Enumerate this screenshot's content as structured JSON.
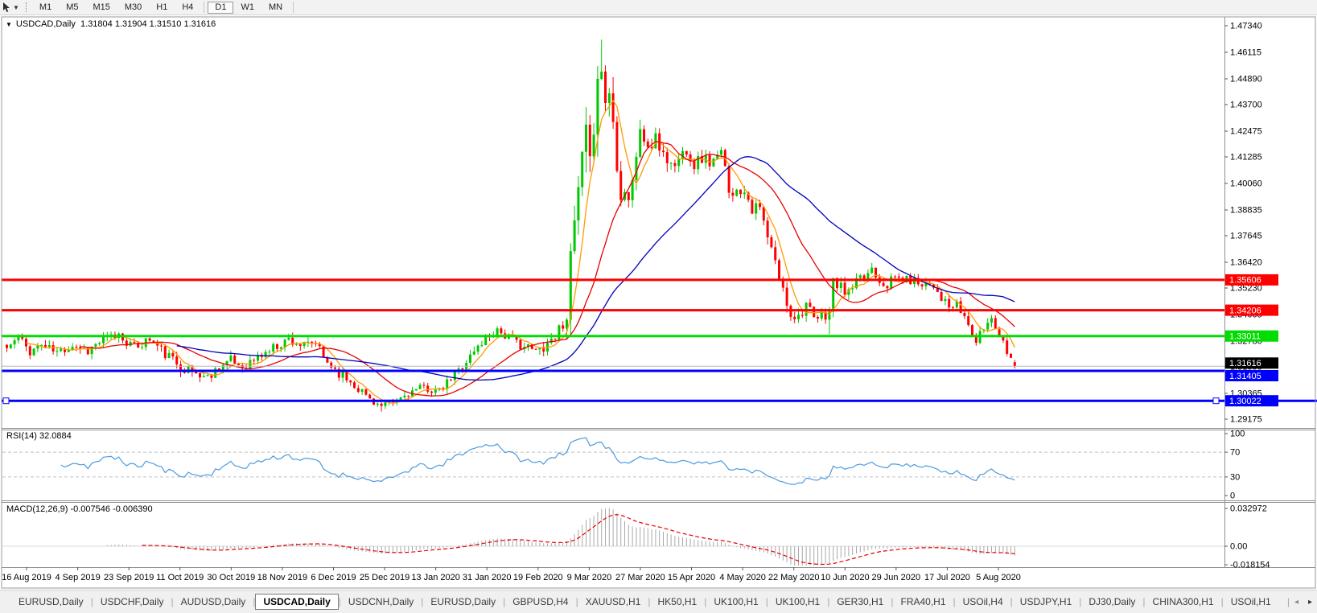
{
  "toolbar": {
    "timeframes": [
      "M1",
      "M5",
      "M15",
      "M30",
      "H1",
      "H4",
      "D1",
      "W1",
      "MN"
    ],
    "active_timeframe": "D1",
    "separator_after_index": 5
  },
  "chart": {
    "collapse_icon": "▼",
    "title": "USDCAD,Daily",
    "ohlc_text": "1.31804 1.31904 1.31510 1.31616"
  },
  "indicators": {
    "rsi": {
      "label": "RSI(14) 32.0884",
      "axis_labels": [
        "100",
        "70",
        "30",
        "0"
      ]
    },
    "macd": {
      "label": "MACD(12,26,9) -0.007546 -0.006390",
      "axis_labels": [
        "0.032972",
        "0.00",
        "-0.018154"
      ]
    }
  },
  "tabs": {
    "items": [
      "EURUSD,Daily",
      "USDCHF,Daily",
      "AUDUSD,Daily",
      "USDCAD,Daily",
      "USDCNH,Daily",
      "EURUSD,Daily",
      "GBPUSD,H4",
      "XAUUSD,H1",
      "HK50,H1",
      "UK100,H1",
      "UK100,H1",
      "GER30,H1",
      "FRA40,H1",
      "USOil,H4",
      "USDJPY,H1",
      "DJ30,Daily",
      "CHINA300,H1",
      "USOil,H1"
    ],
    "active_index": 3,
    "scroll_left": "◂",
    "scroll_right": "▸"
  },
  "chart_data": {
    "type": "candlestick",
    "symbol": "USDCAD",
    "period": "Daily",
    "current_bar": {
      "open": 1.31804,
      "high": 1.31904,
      "low": 1.3151,
      "close": 1.31616
    },
    "ylim": [
      1.29175,
      1.4734
    ],
    "y_ticks": [
      "1.47340",
      "1.46115",
      "1.44890",
      "1.43700",
      "1.42475",
      "1.41285",
      "1.40060",
      "1.38835",
      "1.37645",
      "1.36420",
      "1.35230",
      "1.34005",
      "1.32780",
      "1.31590",
      "1.30365",
      "1.29175"
    ],
    "x_labels": [
      "16 Aug 2019",
      "4 Sep 2019",
      "23 Sep 2019",
      "11 Oct 2019",
      "30 Oct 2019",
      "18 Nov 2019",
      "6 Dec 2019",
      "25 Dec 2019",
      "13 Jan 2020",
      "31 Jan 2020",
      "19 Feb 2020",
      "9 Mar 2020",
      "27 Mar 2020",
      "15 Apr 2020",
      "4 May 2020",
      "22 May 2020",
      "10 Jun 2020",
      "29 Jun 2020",
      "17 Jul 2020",
      "5 Aug 2020"
    ],
    "horizontal_lines": [
      {
        "price": 1.35606,
        "label": "1.35606",
        "color": "#ff0000",
        "width": 3,
        "full_width": false,
        "selected": false
      },
      {
        "price": 1.34206,
        "label": "1.34206",
        "color": "#ff0000",
        "width": 3,
        "full_width": false,
        "selected": false
      },
      {
        "price": 1.33011,
        "label": "1.33011",
        "color": "#00dd00",
        "width": 3,
        "full_width": false,
        "selected": false
      },
      {
        "price": 1.31405,
        "label": "1.31405",
        "color": "#0000ff",
        "width": 3,
        "full_width": false,
        "selected": false
      },
      {
        "price": 1.30022,
        "label": "1.30022",
        "color": "#0000ff",
        "width": 3,
        "full_width": true,
        "selected": true
      }
    ],
    "current_price_line": {
      "price": 1.31616,
      "label": "1.31616",
      "color": "#b8b8b8",
      "label_bg": "#000000"
    },
    "candle_colors": {
      "up": "#00c800",
      "down": "#ff0000"
    },
    "moving_averages": [
      {
        "period": 6,
        "color": "#ff9a00"
      },
      {
        "period": 20,
        "color": "#e60000"
      },
      {
        "period": 45,
        "color": "#0000bb"
      }
    ],
    "rsi": {
      "period": 14,
      "value": 32.0884,
      "levels": [
        70,
        30
      ],
      "range": [
        0,
        100
      ],
      "color": "#4a9be0",
      "level_color": "#c0c0c0"
    },
    "macd": {
      "fast": 12,
      "slow": 26,
      "signal": 9,
      "macd_value": -0.007546,
      "signal_value": -0.00639,
      "scale_max": 0.032972,
      "scale_min": -0.018154,
      "hist_color": "#a8a8a8",
      "signal_color": "#e60000"
    },
    "candles_approx": {
      "count": 262,
      "seed": 11,
      "anchors": [
        [
          0,
          1.3245,
          0.0045
        ],
        [
          3,
          1.3292,
          0.0045
        ],
        [
          6,
          1.3232,
          0.0045
        ],
        [
          9,
          1.3262,
          0.0045
        ],
        [
          13,
          1.3224,
          0.0045
        ],
        [
          17,
          1.3262,
          0.0045
        ],
        [
          21,
          1.3235,
          0.0045
        ],
        [
          25,
          1.3285,
          0.0045
        ],
        [
          29,
          1.3307,
          0.0045
        ],
        [
          33,
          1.3248,
          0.0045
        ],
        [
          37,
          1.3288,
          0.005
        ],
        [
          41,
          1.3218,
          0.005
        ],
        [
          45,
          1.3162,
          0.005
        ],
        [
          49,
          1.3128,
          0.005
        ],
        [
          52,
          1.311,
          0.0045
        ],
        [
          55,
          1.3162,
          0.0045
        ],
        [
          58,
          1.3188,
          0.0045
        ],
        [
          61,
          1.3158,
          0.0045
        ],
        [
          65,
          1.3202,
          0.0045
        ],
        [
          69,
          1.3248,
          0.0045
        ],
        [
          73,
          1.3288,
          0.0045
        ],
        [
          77,
          1.3252,
          0.0045
        ],
        [
          80,
          1.327,
          0.0045
        ],
        [
          82,
          1.3198,
          0.0045
        ],
        [
          86,
          1.3132,
          0.0045
        ],
        [
          90,
          1.3078,
          0.0042
        ],
        [
          94,
          1.3012,
          0.0038
        ],
        [
          97,
          1.2974,
          0.0035
        ],
        [
          100,
          1.2992,
          0.0035
        ],
        [
          104,
          1.3038,
          0.0035
        ],
        [
          108,
          1.3064,
          0.0035
        ],
        [
          112,
          1.3042,
          0.0038
        ],
        [
          116,
          1.3124,
          0.0042
        ],
        [
          120,
          1.3208,
          0.0045
        ],
        [
          124,
          1.3294,
          0.0045
        ],
        [
          127,
          1.3334,
          0.0045
        ],
        [
          130,
          1.329,
          0.0045
        ],
        [
          134,
          1.3254,
          0.0045
        ],
        [
          137,
          1.323,
          0.0045
        ],
        [
          140,
          1.327,
          0.0055
        ],
        [
          143,
          1.3328,
          0.007
        ],
        [
          145,
          1.3425,
          0.011
        ],
        [
          147,
          1.3815,
          0.017
        ],
        [
          149,
          1.4085,
          0.019
        ],
        [
          150,
          1.4185,
          0.021
        ],
        [
          151,
          1.4025,
          0.021
        ],
        [
          152,
          1.4335,
          0.022
        ],
        [
          153,
          1.4555,
          0.019
        ],
        [
          154,
          1.4505,
          0.017
        ],
        [
          155,
          1.4395,
          0.016
        ],
        [
          156,
          1.4435,
          0.015
        ],
        [
          157,
          1.4285,
          0.014
        ],
        [
          158,
          1.4125,
          0.013
        ],
        [
          159,
          1.3985,
          0.012
        ],
        [
          161,
          1.3955,
          0.011
        ],
        [
          163,
          1.4105,
          0.01
        ],
        [
          164,
          1.4265,
          0.0095
        ],
        [
          166,
          1.4165,
          0.009
        ],
        [
          168,
          1.4195,
          0.0085
        ],
        [
          170,
          1.4155,
          0.008
        ],
        [
          172,
          1.4085,
          0.0075
        ],
        [
          174,
          1.4115,
          0.007
        ],
        [
          176,
          1.4175,
          0.0068
        ],
        [
          178,
          1.4095,
          0.0066
        ],
        [
          180,
          1.4125,
          0.0064
        ],
        [
          182,
          1.4105,
          0.0062
        ],
        [
          184,
          1.4118,
          0.006
        ],
        [
          185,
          1.4145,
          0.006
        ],
        [
          187,
          1.3988,
          0.006
        ],
        [
          189,
          1.3962,
          0.006
        ],
        [
          191,
          1.3988,
          0.006
        ],
        [
          193,
          1.3892,
          0.006
        ],
        [
          195,
          1.3888,
          0.006
        ],
        [
          197,
          1.3752,
          0.006
        ],
        [
          199,
          1.3638,
          0.006
        ],
        [
          201,
          1.3508,
          0.006
        ],
        [
          203,
          1.3408,
          0.0058
        ],
        [
          205,
          1.3392,
          0.0055
        ],
        [
          207,
          1.3452,
          0.0052
        ],
        [
          209,
          1.337,
          0.005
        ],
        [
          211,
          1.3392,
          0.005
        ],
        [
          213,
          1.3412,
          0.0058
        ],
        [
          214,
          1.3552,
          0.0058
        ],
        [
          216,
          1.3522,
          0.005
        ],
        [
          218,
          1.3498,
          0.0048
        ],
        [
          220,
          1.3548,
          0.0046
        ],
        [
          222,
          1.3568,
          0.0045
        ],
        [
          224,
          1.362,
          0.0044
        ],
        [
          226,
          1.356,
          0.0042
        ],
        [
          228,
          1.354,
          0.0042
        ],
        [
          230,
          1.3574,
          0.0042
        ],
        [
          232,
          1.356,
          0.0042
        ],
        [
          234,
          1.356,
          0.0042
        ],
        [
          236,
          1.355,
          0.0042
        ],
        [
          238,
          1.355,
          0.0042
        ],
        [
          240,
          1.354,
          0.0042
        ],
        [
          242,
          1.348,
          0.0042
        ],
        [
          244,
          1.343,
          0.0042
        ],
        [
          246,
          1.344,
          0.0042
        ],
        [
          248,
          1.339,
          0.0042
        ],
        [
          250,
          1.331,
          0.0042
        ],
        [
          251,
          1.327,
          0.0042
        ],
        [
          253,
          1.334,
          0.0042
        ],
        [
          255,
          1.3388,
          0.0042
        ],
        [
          257,
          1.331,
          0.0042
        ],
        [
          259,
          1.324,
          0.0042
        ],
        [
          261,
          1.31616,
          0.004
        ]
      ],
      "wick_overrides": [
        [
          97,
          "low",
          1.2952
        ],
        [
          154,
          "high",
          1.467
        ],
        [
          213,
          "low",
          1.331
        ]
      ]
    }
  }
}
